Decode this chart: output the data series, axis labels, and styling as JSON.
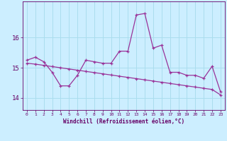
{
  "x": [
    0,
    1,
    2,
    3,
    4,
    5,
    6,
    7,
    8,
    9,
    10,
    11,
    12,
    13,
    14,
    15,
    16,
    17,
    18,
    19,
    20,
    21,
    22,
    23
  ],
  "line1": [
    15.25,
    15.35,
    15.2,
    14.85,
    14.4,
    14.4,
    14.75,
    15.25,
    15.2,
    15.15,
    15.15,
    15.55,
    15.55,
    16.75,
    16.8,
    15.65,
    15.75,
    14.85,
    14.85,
    14.75,
    14.75,
    14.65,
    15.05,
    14.2
  ],
  "line2": [
    15.15,
    15.12,
    15.08,
    15.04,
    15.0,
    14.96,
    14.92,
    14.88,
    14.84,
    14.8,
    14.76,
    14.72,
    14.68,
    14.64,
    14.6,
    14.56,
    14.52,
    14.48,
    14.44,
    14.4,
    14.36,
    14.32,
    14.28,
    14.1
  ],
  "line_color": "#993399",
  "bg_color": "#cceeff",
  "grid_color": "#aaddee",
  "tick_color": "#660066",
  "xlabel": "Windchill (Refroidissement éolien,°C)",
  "ylabel_ticks": [
    14,
    15,
    16
  ],
  "xlim": [
    -0.5,
    23.5
  ],
  "ylim": [
    13.6,
    17.2
  ],
  "font_color": "#660066"
}
